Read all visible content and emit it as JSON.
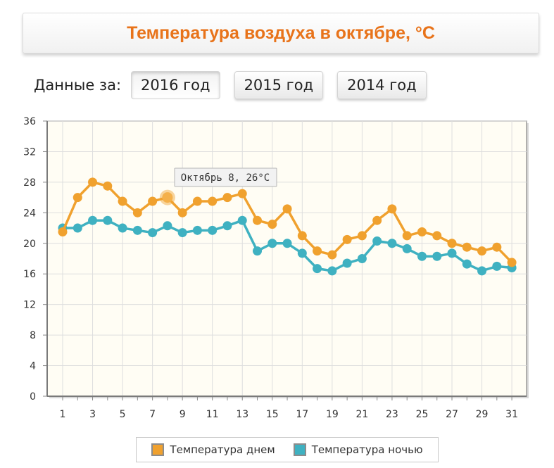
{
  "header": {
    "title": "Температура воздуха в октябре, °C"
  },
  "year_selector": {
    "label": "Данные за:",
    "buttons": [
      "2016 год",
      "2015 год",
      "2014 год"
    ],
    "active": "2016 год"
  },
  "tooltip": {
    "text": "Октябрь 8, 26°C"
  },
  "colors": {
    "day": "#f0a12e",
    "night": "#3fb1c1",
    "title": "#e8731a",
    "plot_bg": "#fffdf4"
  },
  "chart_data": {
    "type": "line",
    "title": "Температура воздуха в октябре, °C",
    "x": [
      1,
      2,
      3,
      4,
      5,
      6,
      7,
      8,
      9,
      10,
      11,
      12,
      13,
      14,
      15,
      16,
      17,
      18,
      19,
      20,
      21,
      22,
      23,
      24,
      25,
      26,
      27,
      28,
      29,
      30,
      31
    ],
    "x_tick_labels": [
      "1",
      "3",
      "5",
      "7",
      "9",
      "11",
      "13",
      "15",
      "17",
      "19",
      "21",
      "23",
      "25",
      "27",
      "29",
      "31"
    ],
    "y_tick_labels": [
      "0",
      "4",
      "8",
      "12",
      "16",
      "20",
      "24",
      "28",
      "32",
      "36"
    ],
    "ylim": [
      0,
      36
    ],
    "grid": true,
    "legend_position": "bottom",
    "highlight": {
      "series": "Температура днем",
      "x": 8,
      "y": 26
    },
    "series": [
      {
        "name": "Температура днем",
        "color": "#f0a12e",
        "values": [
          21.5,
          26,
          28,
          27.5,
          25.5,
          24,
          25.5,
          26,
          24,
          25.5,
          25.5,
          26,
          26.5,
          23,
          22.5,
          24.5,
          21,
          19,
          18.5,
          20.5,
          21,
          23,
          24.5,
          21,
          21.5,
          21,
          20,
          19.5,
          19,
          19.5,
          17.5
        ]
      },
      {
        "name": "Температура ночью",
        "color": "#3fb1c1",
        "values": [
          22,
          22,
          23,
          23,
          22,
          21.7,
          21.4,
          22.3,
          21.4,
          21.7,
          21.7,
          22.3,
          23,
          19,
          20,
          20,
          18.7,
          16.7,
          16.4,
          17.4,
          18,
          20.3,
          20,
          19.3,
          18.3,
          18.3,
          18.7,
          17.3,
          16.4,
          17,
          16.8
        ]
      }
    ]
  }
}
